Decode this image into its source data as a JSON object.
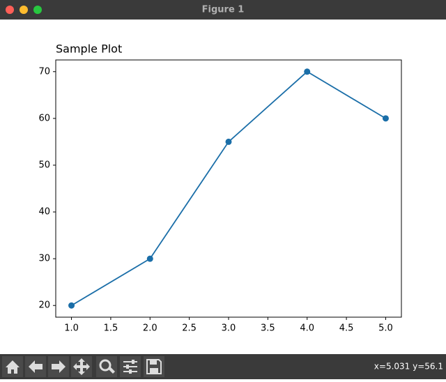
{
  "window": {
    "title": "Figure 1",
    "status": "x=5.031 y=56.1"
  },
  "chart_data": {
    "type": "line",
    "title": "Sample Plot",
    "x": [
      1,
      2,
      3,
      4,
      5
    ],
    "values": [
      20,
      30,
      55,
      70,
      60
    ],
    "color": "#1a6ea8",
    "xlim": [
      0.8,
      5.2
    ],
    "ylim": [
      17.5,
      72.5
    ],
    "xticks": [
      {
        "value": 1,
        "label": "1.0"
      },
      {
        "value": 1.5,
        "label": "1.5"
      },
      {
        "value": 2,
        "label": "2.0"
      },
      {
        "value": 2.5,
        "label": "2.5"
      },
      {
        "value": 3,
        "label": "3.0"
      },
      {
        "value": 3.5,
        "label": "3.5"
      },
      {
        "value": 4,
        "label": "4.0"
      },
      {
        "value": 4.5,
        "label": "4.5"
      },
      {
        "value": 5,
        "label": "5.0"
      }
    ],
    "yticks": [
      20,
      30,
      40,
      50,
      60,
      70
    ],
    "grid": false
  }
}
